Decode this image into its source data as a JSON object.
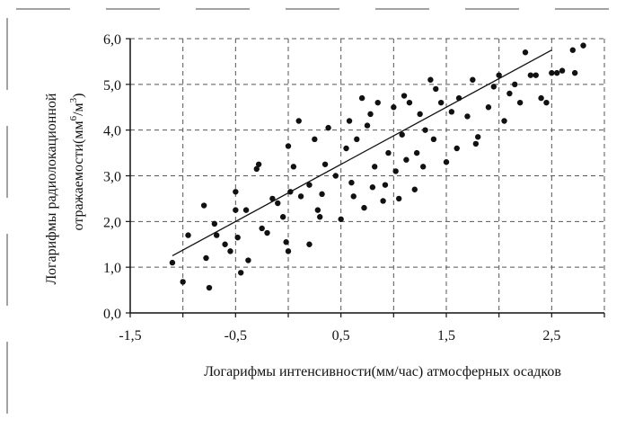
{
  "chart_data": {
    "type": "scatter",
    "title": "",
    "xlabel": "Логарифмы интенсивности(мм/час) атмосферных осадков",
    "ylabel_line1": "Логарифмы радиолокационной",
    "ylabel_line2": "отражаемости(мм",
    "ylabel_sup1": "6",
    "ylabel_mid": "/м",
    "ylabel_sup2": "3",
    "ylabel_end": ")",
    "xlim": [
      -1.5,
      3.0
    ],
    "ylim": [
      0.0,
      6.0
    ],
    "x_ticks": [
      "-1,5",
      "-0,5",
      "0,5",
      "1,5",
      "2,5"
    ],
    "x_tick_values": [
      -1.5,
      -0.5,
      0.5,
      1.5,
      2.5
    ],
    "y_ticks": [
      "0,0",
      "1,0",
      "2,0",
      "3,0",
      "4,0",
      "5,0",
      "6,0"
    ],
    "y_tick_values": [
      0,
      1,
      2,
      3,
      4,
      5,
      6
    ],
    "grid": "dashed",
    "legend": "none",
    "marker_color": "#111111",
    "trendline": {
      "x": [
        -1.1,
        2.5
      ],
      "y": [
        1.25,
        5.75
      ]
    },
    "series": [
      {
        "points": [
          [
            -1.1,
            1.1
          ],
          [
            -1.0,
            0.68
          ],
          [
            -0.95,
            1.7
          ],
          [
            -0.8,
            2.35
          ],
          [
            -0.78,
            1.2
          ],
          [
            -0.75,
            0.55
          ],
          [
            -0.7,
            1.95
          ],
          [
            -0.68,
            1.7
          ],
          [
            -0.6,
            1.5
          ],
          [
            -0.55,
            1.35
          ],
          [
            -0.5,
            2.65
          ],
          [
            -0.5,
            2.25
          ],
          [
            -0.48,
            1.65
          ],
          [
            -0.45,
            0.88
          ],
          [
            -0.4,
            2.25
          ],
          [
            -0.38,
            1.15
          ],
          [
            -0.3,
            3.15
          ],
          [
            -0.28,
            3.25
          ],
          [
            -0.25,
            1.85
          ],
          [
            -0.2,
            1.75
          ],
          [
            -0.15,
            2.5
          ],
          [
            -0.1,
            2.4
          ],
          [
            -0.05,
            2.1
          ],
          [
            -0.02,
            1.55
          ],
          [
            0.0,
            1.35
          ],
          [
            0.0,
            3.65
          ],
          [
            0.02,
            2.65
          ],
          [
            0.05,
            3.2
          ],
          [
            0.1,
            4.2
          ],
          [
            0.12,
            2.55
          ],
          [
            0.2,
            2.8
          ],
          [
            0.2,
            1.5
          ],
          [
            0.25,
            3.8
          ],
          [
            0.28,
            2.25
          ],
          [
            0.3,
            2.1
          ],
          [
            0.32,
            2.6
          ],
          [
            0.35,
            3.25
          ],
          [
            0.38,
            4.05
          ],
          [
            0.45,
            3.0
          ],
          [
            0.5,
            2.05
          ],
          [
            0.55,
            3.6
          ],
          [
            0.58,
            4.2
          ],
          [
            0.6,
            2.85
          ],
          [
            0.62,
            2.55
          ],
          [
            0.65,
            3.8
          ],
          [
            0.7,
            4.7
          ],
          [
            0.72,
            2.3
          ],
          [
            0.75,
            4.1
          ],
          [
            0.78,
            4.35
          ],
          [
            0.8,
            2.75
          ],
          [
            0.82,
            3.2
          ],
          [
            0.85,
            4.6
          ],
          [
            0.9,
            2.45
          ],
          [
            0.92,
            2.8
          ],
          [
            0.95,
            3.5
          ],
          [
            1.0,
            4.5
          ],
          [
            1.02,
            3.1
          ],
          [
            1.05,
            2.5
          ],
          [
            1.08,
            3.9
          ],
          [
            1.1,
            4.75
          ],
          [
            1.12,
            3.35
          ],
          [
            1.15,
            4.6
          ],
          [
            1.2,
            2.7
          ],
          [
            1.22,
            3.5
          ],
          [
            1.25,
            4.35
          ],
          [
            1.28,
            3.2
          ],
          [
            1.3,
            4.0
          ],
          [
            1.35,
            5.1
          ],
          [
            1.38,
            3.8
          ],
          [
            1.4,
            4.9
          ],
          [
            1.45,
            4.6
          ],
          [
            1.5,
            3.3
          ],
          [
            1.55,
            4.4
          ],
          [
            1.6,
            3.6
          ],
          [
            1.62,
            4.7
          ],
          [
            1.7,
            4.3
          ],
          [
            1.75,
            5.1
          ],
          [
            1.78,
            3.7
          ],
          [
            1.8,
            3.85
          ],
          [
            1.9,
            4.5
          ],
          [
            1.95,
            4.95
          ],
          [
            2.0,
            5.2
          ],
          [
            2.05,
            4.2
          ],
          [
            2.1,
            4.8
          ],
          [
            2.15,
            5.0
          ],
          [
            2.2,
            4.6
          ],
          [
            2.25,
            5.7
          ],
          [
            2.3,
            5.2
          ],
          [
            2.35,
            5.2
          ],
          [
            2.4,
            4.7
          ],
          [
            2.45,
            4.6
          ],
          [
            2.5,
            5.25
          ],
          [
            2.55,
            5.25
          ],
          [
            2.6,
            5.3
          ],
          [
            2.7,
            5.75
          ],
          [
            2.72,
            5.25
          ],
          [
            2.8,
            5.85
          ]
        ]
      }
    ]
  }
}
